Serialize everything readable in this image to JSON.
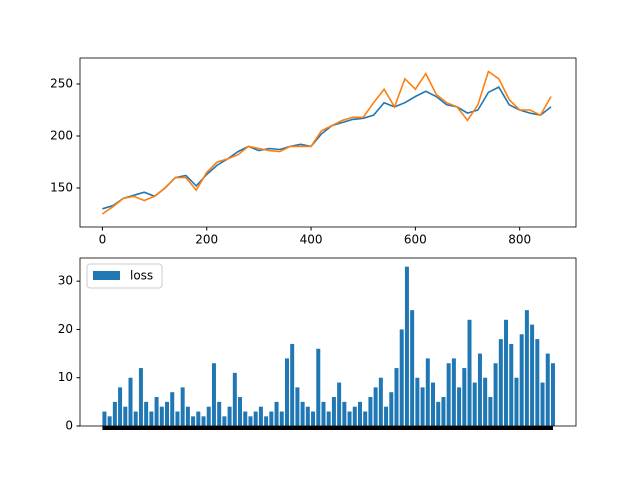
{
  "chart_data": [
    {
      "type": "line",
      "x": [
        0,
        20,
        40,
        60,
        80,
        100,
        120,
        140,
        160,
        180,
        200,
        220,
        240,
        260,
        280,
        300,
        320,
        340,
        360,
        380,
        400,
        420,
        440,
        460,
        480,
        500,
        520,
        540,
        560,
        580,
        600,
        620,
        640,
        660,
        680,
        700,
        720,
        740,
        760,
        780,
        800,
        820,
        840,
        860
      ],
      "series": [
        {
          "color": "#1f77b4",
          "values": [
            130,
            133,
            140,
            143,
            146,
            142,
            150,
            160,
            162,
            152,
            163,
            172,
            178,
            185,
            190,
            186,
            188,
            187,
            190,
            192,
            190,
            202,
            210,
            213,
            216,
            217,
            220,
            232,
            228,
            232,
            238,
            243,
            238,
            230,
            228,
            222,
            225,
            242,
            247,
            230,
            225,
            222,
            220,
            228
          ]
        },
        {
          "color": "#ff7f0e",
          "values": [
            125,
            132,
            140,
            142,
            138,
            142,
            150,
            160,
            160,
            148,
            165,
            175,
            178,
            182,
            190,
            188,
            186,
            185,
            190,
            190,
            190,
            205,
            210,
            215,
            218,
            218,
            232,
            245,
            228,
            255,
            245,
            260,
            240,
            232,
            228,
            215,
            230,
            262,
            255,
            235,
            225,
            225,
            220,
            238
          ]
        }
      ],
      "xlim": [
        -43,
        908
      ],
      "ylim": [
        112.5,
        275
      ],
      "xticks": [
        0,
        200,
        400,
        600,
        800
      ],
      "yticks": [
        150,
        200,
        250
      ]
    },
    {
      "type": "bar",
      "x": [
        0,
        10,
        20,
        30,
        40,
        50,
        60,
        70,
        80,
        90,
        100,
        110,
        120,
        130,
        140,
        150,
        160,
        170,
        180,
        190,
        200,
        210,
        220,
        230,
        240,
        250,
        260,
        270,
        280,
        290,
        300,
        310,
        320,
        330,
        340,
        350,
        360,
        370,
        380,
        390,
        400,
        410,
        420,
        430,
        440,
        450,
        460,
        470,
        480,
        490,
        500,
        510,
        520,
        530,
        540,
        550,
        560,
        570,
        580,
        590,
        600,
        610,
        620,
        630,
        640,
        650,
        660,
        670,
        680,
        690,
        700,
        710,
        720,
        730,
        740,
        750,
        760,
        770,
        780,
        790,
        800,
        810,
        820,
        830,
        840,
        850,
        860
      ],
      "series": [
        {
          "name": "loss",
          "color": "#1f77b4",
          "values": [
            3,
            2,
            5,
            8,
            4,
            10,
            3,
            12,
            5,
            3,
            6,
            4,
            5,
            7,
            3,
            8,
            4,
            2,
            3,
            2,
            4,
            13,
            5,
            2,
            4,
            11,
            6,
            3,
            2,
            3,
            4,
            2,
            3,
            5,
            3,
            14,
            17,
            8,
            5,
            4,
            3,
            16,
            5,
            3,
            6,
            9,
            5,
            3,
            4,
            5,
            3,
            6,
            8,
            10,
            4,
            7,
            12,
            20,
            33,
            24,
            10,
            8,
            14,
            9,
            5,
            6,
            13,
            14,
            8,
            12,
            22,
            9,
            15,
            10,
            6,
            13,
            18,
            22,
            17,
            10,
            19,
            24,
            21,
            18,
            9,
            15,
            13
          ]
        }
      ],
      "xlim": [
        -43,
        908
      ],
      "ylim": [
        0,
        34.8
      ],
      "yticks": [
        0,
        10,
        20,
        30
      ],
      "legend": "upper left"
    }
  ]
}
